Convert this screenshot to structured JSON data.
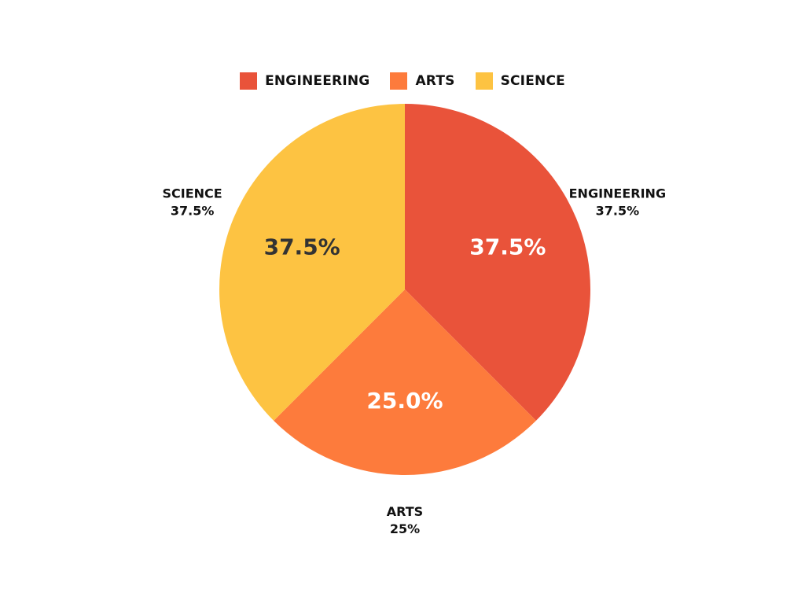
{
  "chart_data": {
    "type": "pie",
    "categories": [
      "ENGINEERING",
      "ARTS",
      "SCIENCE"
    ],
    "values": [
      37.5,
      25.0,
      37.5
    ],
    "slice_labels": [
      "37.5%",
      "25.0%",
      "37.5%"
    ],
    "outer_labels": [
      {
        "name": "ENGINEERING",
        "value": "37.5%"
      },
      {
        "name": "ARTS",
        "value": "25%"
      },
      {
        "name": "SCIENCE",
        "value": "37.5%"
      }
    ],
    "colors": [
      "#e9533a",
      "#fd7b3c",
      "#fdc342"
    ],
    "slice_label_colors": [
      "#ffffff",
      "#ffffff",
      "#333333"
    ],
    "legend_position": "top-center",
    "start_angle_deg": 0,
    "direction": "clockwise"
  },
  "legend": {
    "items": [
      {
        "label": "ENGINEERING",
        "color": "#e9533a"
      },
      {
        "label": "ARTS",
        "color": "#fd7b3c"
      },
      {
        "label": "SCIENCE",
        "color": "#fdc342"
      }
    ]
  }
}
